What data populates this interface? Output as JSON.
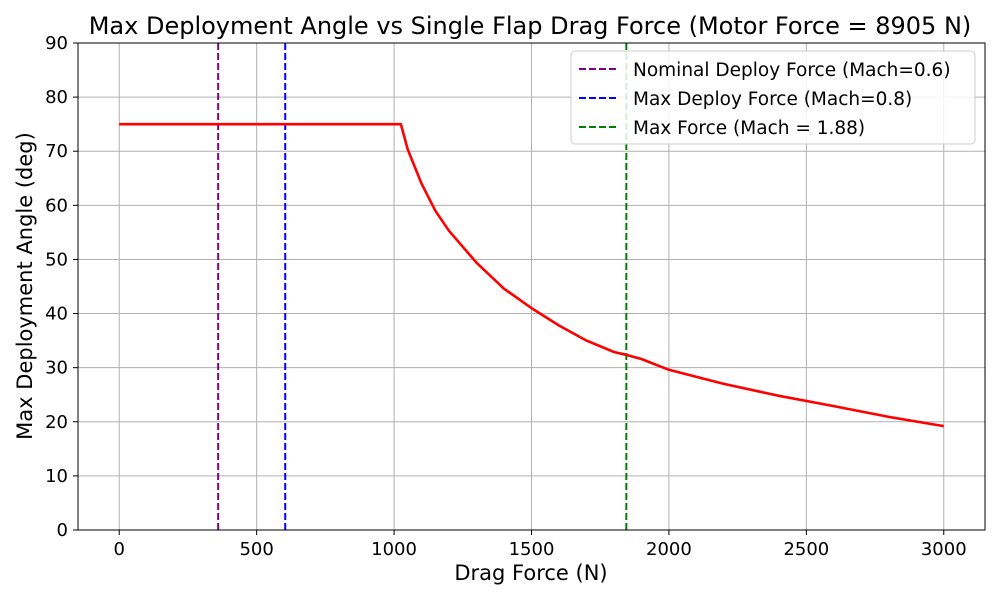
{
  "chart_data": {
    "type": "line",
    "title": "Max Deployment Angle vs Single Flap Drag Force (Motor Force = 8905 N)",
    "xlabel": "Drag Force (N)",
    "ylabel": "Max Deployment Angle (deg)",
    "xlim": [
      -150,
      3150
    ],
    "ylim": [
      0,
      90
    ],
    "xticks": [
      0,
      500,
      1000,
      1500,
      2000,
      2500,
      3000
    ],
    "xtick_labels": [
      "0",
      "500",
      "1000",
      "1500",
      "2000",
      "2500",
      "3000"
    ],
    "yticks": [
      0,
      10,
      20,
      30,
      40,
      50,
      60,
      70,
      80,
      90
    ],
    "ytick_labels": [
      "0",
      "10",
      "20",
      "30",
      "40",
      "50",
      "60",
      "70",
      "80",
      "90"
    ],
    "grid": true,
    "legend_position": "top-right",
    "series": [
      {
        "color": "#ff0000",
        "style": "solid",
        "x": [
          0,
          200,
          400,
          600,
          800,
          1000,
          1020,
          1025,
          1050,
          1100,
          1150,
          1200,
          1300,
          1400,
          1500,
          1600,
          1700,
          1800,
          1850,
          1900,
          2000,
          2200,
          2400,
          2600,
          2800,
          3000
        ],
        "y": [
          75,
          75,
          75,
          75,
          75,
          75,
          75,
          75,
          70.3,
          64.0,
          59.0,
          55.3,
          49.4,
          44.6,
          41.0,
          37.8,
          35.0,
          32.9,
          32.3,
          31.6,
          29.6,
          27.0,
          24.8,
          22.9,
          20.9,
          19.2
        ]
      }
    ],
    "vlines": [
      {
        "name": "Nominal Deploy Force (Mach=0.6)",
        "x": 360,
        "color": "#800080",
        "style": "dashed"
      },
      {
        "name": "Max Deploy Force (Mach=0.8)",
        "x": 604,
        "color": "#0000ff",
        "style": "dashed"
      },
      {
        "name": "Max Force (Mach = 1.88)",
        "x": 1845,
        "color": "#008000",
        "style": "dashed"
      }
    ]
  }
}
